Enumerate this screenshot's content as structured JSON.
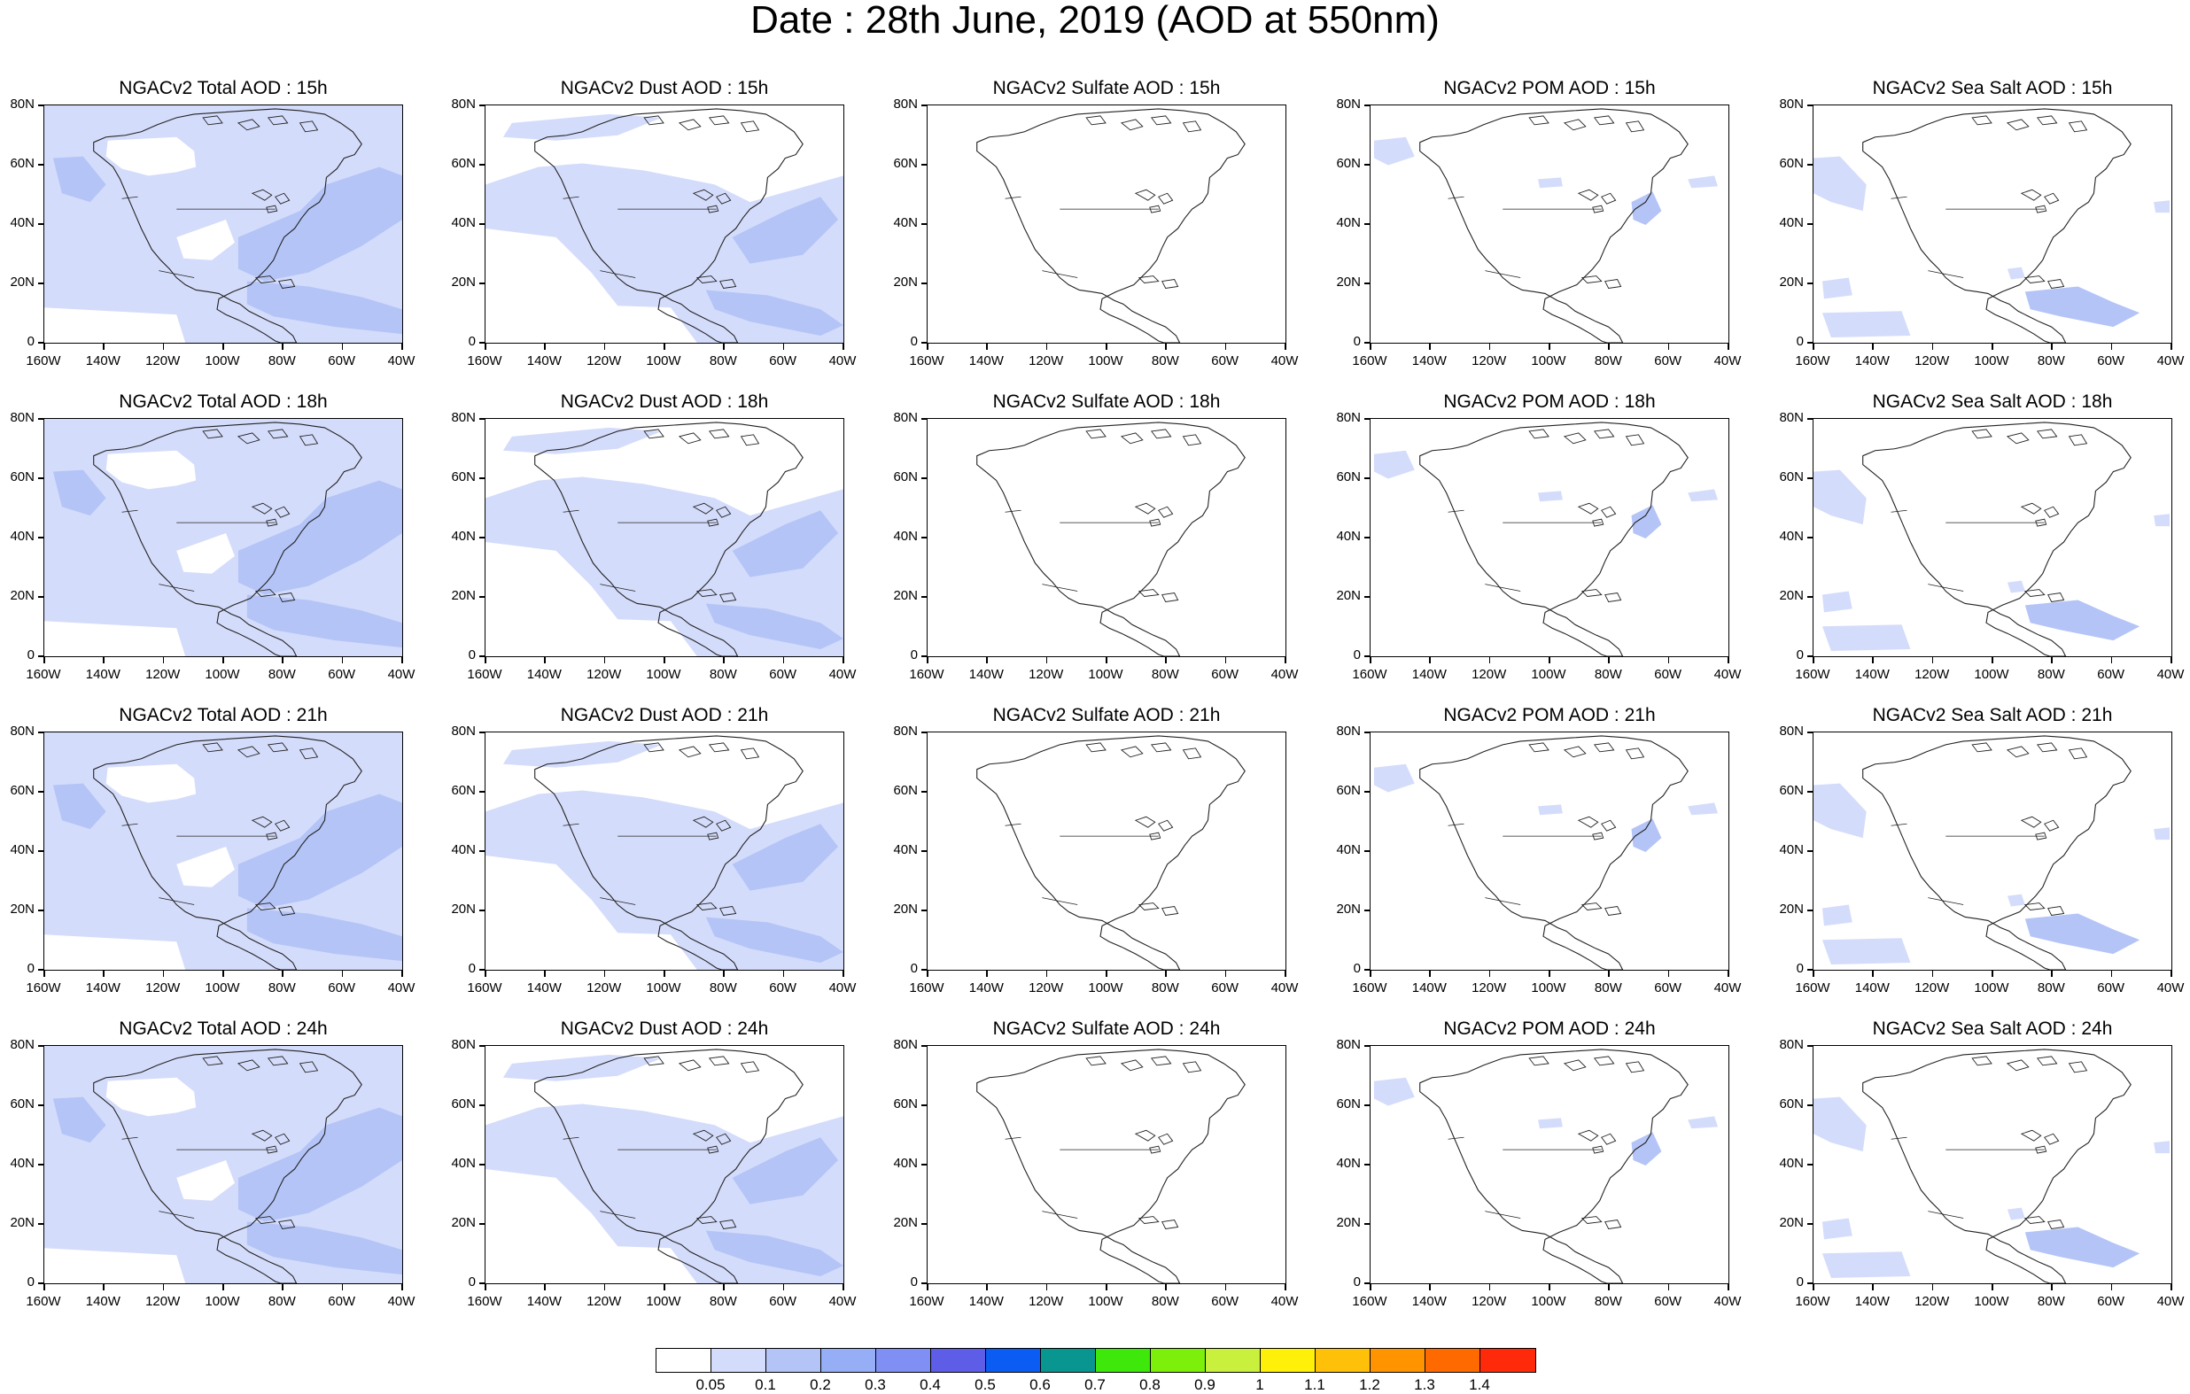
{
  "title": "Date : 28th June, 2019 (AOD at 550nm)",
  "colors": {
    "aod_light": "#d4dcfb",
    "aod_mid": "#b4c4f7",
    "coast": "#222222"
  },
  "axes": {
    "y_ticks": [
      "80N",
      "60N",
      "40N",
      "20N",
      "0"
    ],
    "x_ticks": [
      "160W",
      "140W",
      "120W",
      "100W",
      "80W",
      "60W",
      "40W"
    ]
  },
  "columns": [
    {
      "key": "total",
      "prefix": "NGACv2 Total AOD"
    },
    {
      "key": "dust",
      "prefix": "NGACv2 Dust AOD"
    },
    {
      "key": "sulfate",
      "prefix": "NGACv2 Sulfate AOD"
    },
    {
      "key": "pom",
      "prefix": "NGACv2 POM AOD"
    },
    {
      "key": "seasalt",
      "prefix": "NGACv2 Sea Salt AOD"
    }
  ],
  "rows": [
    {
      "hour": "15h",
      "titles": [
        "NGACv2 Total AOD : 15h",
        "NGACv2 Dust AOD : 15h",
        "NGACv2 Sulfate AOD : 15h",
        "NGACv2 POM AOD : 15h",
        "NGACv2 Sea Salt AOD : 15h"
      ]
    },
    {
      "hour": "18h",
      "titles": [
        "NGACv2 Total AOD : 18h",
        "NGACv2 Dust AOD : 18h",
        "NGACv2 Sulfate AOD : 18h",
        "NGACv2 POM AOD : 18h",
        "NGACv2 Sea Salt AOD : 18h"
      ]
    },
    {
      "hour": "21h",
      "titles": [
        "NGACv2 Total AOD : 21h",
        "NGACv2 Dust AOD : 21h",
        "NGACv2 Sulfate AOD : 21h",
        "NGACv2 POM AOD : 21h",
        "NGACv2 Sea Salt AOD : 21h"
      ]
    },
    {
      "hour": "24h",
      "titles": [
        "NGACv2 Total AOD : 24h",
        "NGACv2 Dust AOD : 24h",
        "NGACv2 Sulfate AOD : 24h",
        "NGACv2 POM AOD : 24h",
        "NGACv2 Sea Salt  AOD : 24h"
      ]
    }
  ],
  "colorbar": {
    "labels": [
      "0.05",
      "0.1",
      "0.2",
      "0.3",
      "0.4",
      "0.5",
      "0.6",
      "0.7",
      "0.8",
      "0.9",
      "1",
      "1.1",
      "1.2",
      "1.3",
      "1.4"
    ],
    "colors": [
      "#ffffff",
      "#d4dcfb",
      "#b4c4f7",
      "#96aef5",
      "#7f8ff3",
      "#5d5de8",
      "#0a5cf2",
      "#0a9690",
      "#3ee80a",
      "#7cf00a",
      "#c8f03c",
      "#fff00a",
      "#ffc00a",
      "#ff9400",
      "#ff6a00",
      "#ff2a0a"
    ]
  }
}
